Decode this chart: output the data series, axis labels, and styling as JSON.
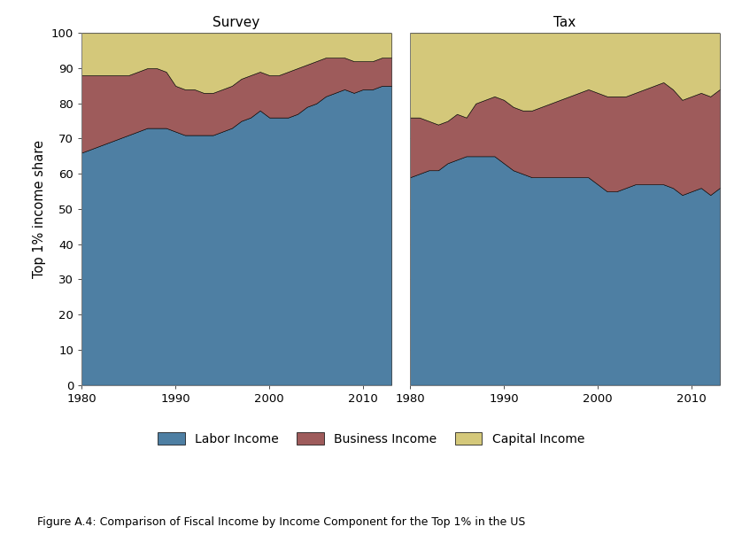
{
  "survey": {
    "years": [
      1980,
      1981,
      1982,
      1983,
      1984,
      1985,
      1986,
      1987,
      1988,
      1989,
      1990,
      1991,
      1992,
      1993,
      1994,
      1995,
      1996,
      1997,
      1998,
      1999,
      2000,
      2001,
      2002,
      2003,
      2004,
      2005,
      2006,
      2007,
      2008,
      2009,
      2010,
      2011,
      2012,
      2013
    ],
    "labor": [
      66,
      67,
      68,
      69,
      70,
      71,
      72,
      73,
      73,
      73,
      72,
      71,
      71,
      71,
      71,
      72,
      73,
      75,
      76,
      78,
      76,
      76,
      76,
      77,
      79,
      80,
      82,
      83,
      84,
      83,
      84,
      84,
      85,
      85
    ],
    "business": [
      22,
      21,
      20,
      19,
      18,
      17,
      17,
      17,
      17,
      16,
      13,
      13,
      13,
      12,
      12,
      12,
      12,
      12,
      12,
      11,
      12,
      12,
      13,
      13,
      12,
      12,
      11,
      10,
      9,
      9,
      8,
      8,
      8,
      8
    ],
    "capital": [
      12,
      12,
      12,
      12,
      12,
      12,
      11,
      10,
      10,
      11,
      15,
      16,
      16,
      17,
      17,
      16,
      15,
      13,
      12,
      11,
      12,
      12,
      11,
      10,
      9,
      8,
      7,
      7,
      7,
      8,
      8,
      8,
      7,
      7
    ]
  },
  "tax": {
    "years": [
      1980,
      1981,
      1982,
      1983,
      1984,
      1985,
      1986,
      1987,
      1988,
      1989,
      1990,
      1991,
      1992,
      1993,
      1994,
      1995,
      1996,
      1997,
      1998,
      1999,
      2000,
      2001,
      2002,
      2003,
      2004,
      2005,
      2006,
      2007,
      2008,
      2009,
      2010,
      2011,
      2012,
      2013
    ],
    "labor": [
      59,
      60,
      61,
      61,
      63,
      64,
      65,
      65,
      65,
      65,
      63,
      61,
      60,
      59,
      59,
      59,
      59,
      59,
      59,
      59,
      57,
      55,
      55,
      56,
      57,
      57,
      57,
      57,
      56,
      54,
      55,
      56,
      54,
      56
    ],
    "business": [
      17,
      16,
      14,
      13,
      12,
      13,
      11,
      15,
      16,
      17,
      18,
      18,
      18,
      19,
      20,
      21,
      22,
      23,
      24,
      25,
      26,
      27,
      27,
      26,
      26,
      27,
      28,
      29,
      28,
      27,
      27,
      27,
      28,
      28
    ],
    "capital": [
      24,
      24,
      25,
      26,
      25,
      23,
      24,
      20,
      19,
      18,
      19,
      21,
      22,
      22,
      21,
      20,
      19,
      18,
      17,
      16,
      17,
      18,
      18,
      18,
      17,
      16,
      15,
      14,
      16,
      19,
      18,
      17,
      18,
      16
    ]
  },
  "colors": {
    "labor": "#4e7fa3",
    "business": "#9e5b5b",
    "capital": "#d4c87a"
  },
  "ylabel": "Top 1% income share",
  "ylim": [
    0,
    100
  ],
  "yticks": [
    0,
    10,
    20,
    30,
    40,
    50,
    60,
    70,
    80,
    90,
    100
  ],
  "xticks": [
    1980,
    1990,
    2000,
    2010
  ],
  "titles": [
    "Survey",
    "Tax"
  ],
  "legend_labels": [
    "Labor Income",
    "Business Income",
    "Capital Income"
  ],
  "figure_caption": "Figure A.4: Comparison of Fiscal Income by Income Component for the Top 1% in the US",
  "background_color": "#ffffff"
}
